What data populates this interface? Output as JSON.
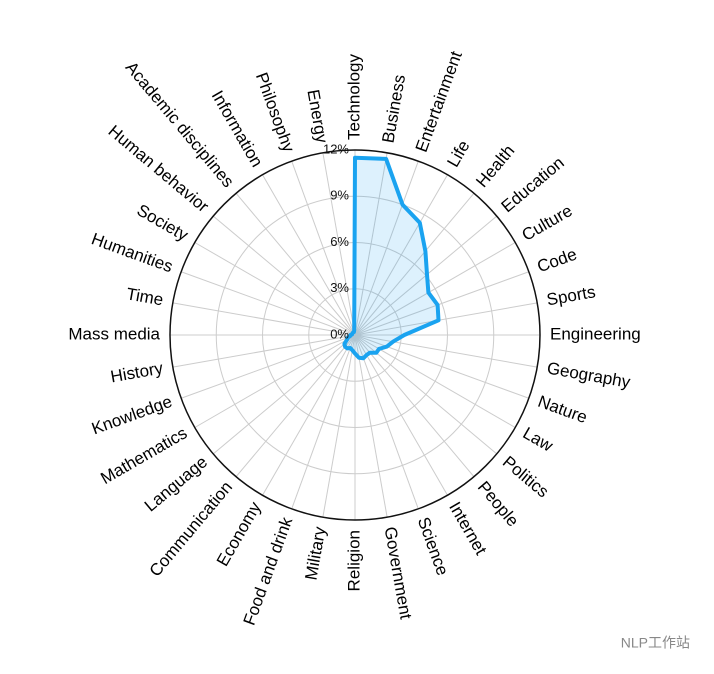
{
  "chart_data": {
    "type": "radar",
    "categories": [
      "Technology",
      "Business",
      "Entertainment",
      "Life",
      "Health",
      "Education",
      "Culture",
      "Code",
      "Sports",
      "Engineering",
      "Geography",
      "Nature",
      "Law",
      "Politics",
      "People",
      "Internet",
      "Science",
      "Government",
      "Religion",
      "Military",
      "Food and drink",
      "Economy",
      "Communication",
      "Language",
      "Mathematics",
      "Knowledge",
      "History",
      "Mass media",
      "Time",
      "Humanities",
      "Society",
      "Human behavior",
      "Academic disciplines",
      "Information",
      "Philosophy",
      "Energy"
    ],
    "series": [
      {
        "color": "#1aa3f0",
        "values": [
          11.5,
          11.6,
          9.0,
          8.4,
          7.1,
          6.1,
          5.5,
          5.7,
          5.5,
          3.2,
          2.5,
          2.2,
          1.8,
          1.8,
          1.5,
          1.5,
          1.6,
          1.5,
          1.2,
          1.0,
          0.9,
          1.0,
          1.0,
          0.9,
          0.6,
          0.5,
          0.3,
          0.3,
          0.2,
          0.2,
          0.2,
          0.2,
          0.2,
          0.2,
          0.2,
          0.3
        ]
      }
    ],
    "ylim": [
      0,
      12
    ],
    "yticks": [
      {
        "value": 0,
        "label": "0%"
      },
      {
        "value": 3,
        "label": "3%"
      },
      {
        "value": 6,
        "label": "6%"
      },
      {
        "value": 9,
        "label": "9%"
      },
      {
        "value": 12,
        "label": "12%"
      }
    ],
    "grid": true
  },
  "watermark": "NLP工作站"
}
